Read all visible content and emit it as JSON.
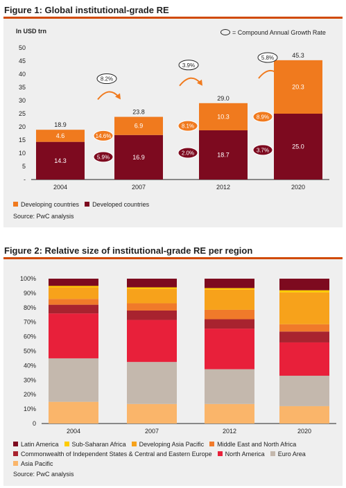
{
  "figure1": {
    "title": "Figure 1: Global institutional-grade RE",
    "unit_label": "In USD trn",
    "cagr_legend": "= Compound Annual Growth Rate",
    "source": "Source: PwC analysis"
  },
  "figure2": {
    "title": "Figure 2: Relative size of institutional-grade RE per region",
    "source": "Source: PwC analysis"
  },
  "colors": {
    "developing": "#f07a1e",
    "developed": "#7d0a1f",
    "latin_america": "#7d0a1f",
    "sub_saharan_africa": "#ffcc00",
    "developing_asia_pacific": "#f7a21b",
    "middle_east_north_africa": "#f07a2a",
    "cis_cee": "#a8232f",
    "north_america": "#e8203a",
    "euro_area": "#c4b8ad",
    "asia_pacific": "#fab56a"
  },
  "chart_data": [
    {
      "type": "bar",
      "stacked": true,
      "title": "Figure 1: Global institutional-grade RE",
      "ylabel": "In USD trn",
      "categories": [
        "2004",
        "2007",
        "2012",
        "2020"
      ],
      "series": [
        {
          "name": "Developed countries",
          "values": [
            14.3,
            16.9,
            18.7,
            25.0
          ],
          "labels": [
            "14.3",
            "16.9",
            "18.7",
            "25.0"
          ]
        },
        {
          "name": "Developing countries",
          "values": [
            4.6,
            6.9,
            10.3,
            20.3
          ],
          "labels": [
            "4.6",
            "6.9",
            "10.3",
            "20.3"
          ]
        }
      ],
      "totals": [
        "18.9",
        "23.8",
        "29.0",
        "45.3"
      ],
      "cagr_total": [
        "8.2%",
        "3.9%",
        "5.8%"
      ],
      "cagr_developing": [
        "14.6%",
        "8.1%",
        "8.9%"
      ],
      "cagr_developed": [
        "5.9%",
        "2.0%",
        "3.7%"
      ],
      "ylim": [
        0,
        50
      ],
      "yticks": [
        "-",
        "5",
        "10",
        "15",
        "20",
        "25",
        "30",
        "35",
        "40",
        "45",
        "50"
      ],
      "legend": [
        "Developing countries",
        "Developed countries"
      ],
      "legend_position": "bottom-left"
    },
    {
      "type": "bar",
      "stacked": true,
      "percent": true,
      "title": "Figure 2: Relative size of institutional-grade RE per region",
      "categories": [
        "2004",
        "2007",
        "2012",
        "2020"
      ],
      "series": [
        {
          "name": "Asia Pacific",
          "color_key": "asia_pacific",
          "values": [
            15,
            13.5,
            13.5,
            12
          ]
        },
        {
          "name": "Euro Area",
          "color_key": "euro_area",
          "values": [
            30,
            29,
            24,
            21
          ]
        },
        {
          "name": "North America",
          "color_key": "north_america",
          "values": [
            31,
            29,
            28,
            23
          ]
        },
        {
          "name": "Commonwealth of Independent States & Central and Eastern Europe",
          "color_key": "cis_cee",
          "values": [
            6,
            6.5,
            6.5,
            7.5
          ]
        },
        {
          "name": "Middle East and North Africa",
          "color_key": "middle_east_north_africa",
          "values": [
            4,
            5,
            6.5,
            5
          ]
        },
        {
          "name": "Developing Asia Pacific",
          "color_key": "developing_asia_pacific",
          "values": [
            8,
            10,
            14,
            22
          ]
        },
        {
          "name": "Sub-Saharan Africa",
          "color_key": "sub_saharan_africa",
          "values": [
            1,
            1,
            1,
            1.5
          ]
        },
        {
          "name": "Latin America",
          "color_key": "latin_america",
          "values": [
            5,
            6,
            6.5,
            8
          ]
        }
      ],
      "ylim": [
        0,
        100
      ],
      "yticks": [
        "0",
        "10%",
        "20%",
        "30%",
        "40%",
        "50%",
        "60%",
        "70%",
        "80%",
        "90%",
        "100%"
      ],
      "legend": [
        "Latin America",
        "Sub-Saharan Africa",
        "Developing Asia Pacific",
        "Middle East and North Africa",
        "Commonwealth of Independent States & Central and Eastern Europe",
        "North America",
        "Euro Area",
        "Asia Pacific"
      ],
      "legend_position": "bottom"
    }
  ]
}
